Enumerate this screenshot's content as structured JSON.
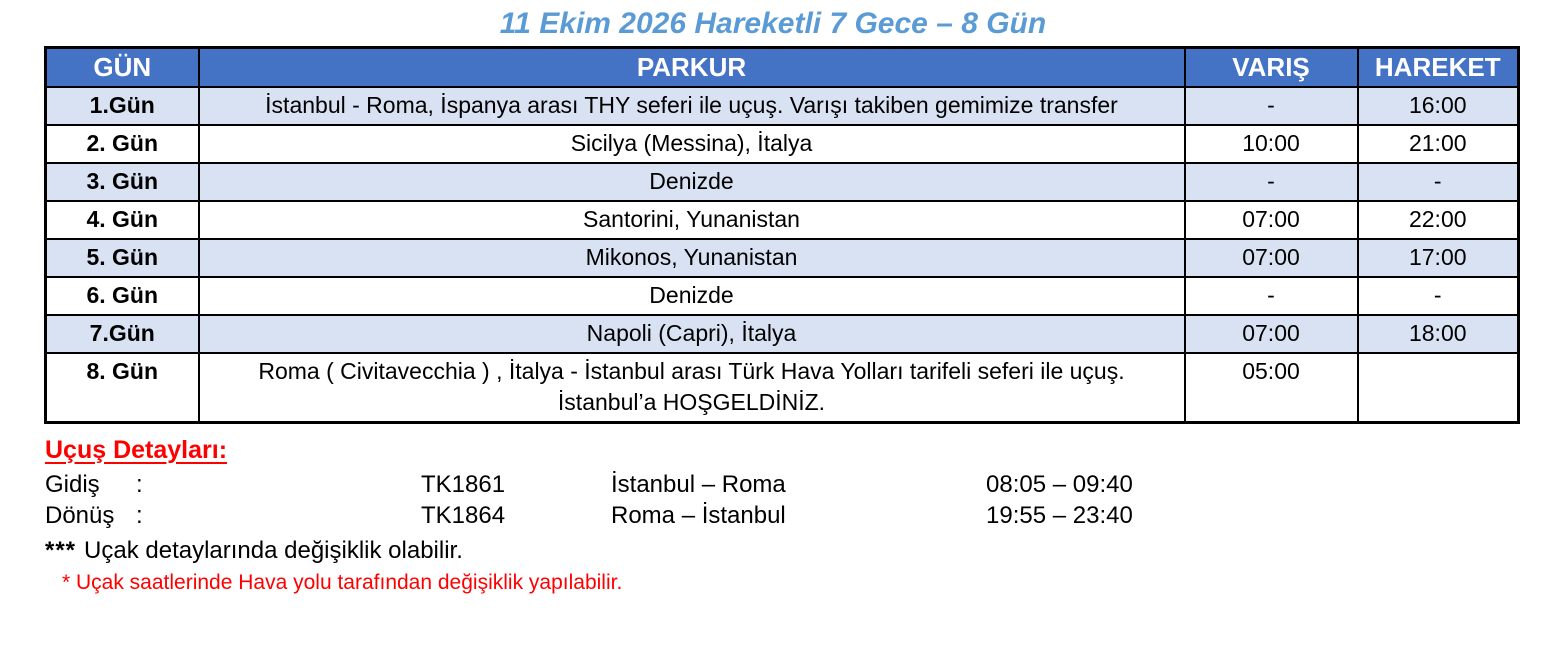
{
  "title": "11 Ekim 2026 Hareketli 7 Gece – 8 Gün",
  "table": {
    "headers": {
      "day": "GÜN",
      "route": "PARKUR",
      "arrival": "VARIŞ",
      "departure": "HAREKET"
    },
    "rows": [
      {
        "day": "1.Gün",
        "route": "İstanbul - Roma, İspanya arası THY seferi ile uçuş. Varışı takiben gemimize transfer",
        "arrival": "-",
        "departure": "16:00"
      },
      {
        "day": "2. Gün",
        "route": "Sicilya (Messina), İtalya",
        "arrival": "10:00",
        "departure": "21:00"
      },
      {
        "day": "3. Gün",
        "route": "Denizde",
        "arrival": "-",
        "departure": "-"
      },
      {
        "day": "4. Gün",
        "route": "Santorini, Yunanistan",
        "arrival": "07:00",
        "departure": "22:00"
      },
      {
        "day": "5. Gün",
        "route": "Mikonos, Yunanistan",
        "arrival": "07:00",
        "departure": "17:00"
      },
      {
        "day": "6. Gün",
        "route": "Denizde",
        "arrival": "-",
        "departure": "-"
      },
      {
        "day": "7.Gün",
        "route": "Napoli (Capri), İtalya",
        "arrival": "07:00",
        "departure": "18:00"
      },
      {
        "day": "8. Gün",
        "route": "Roma ( Civitavecchia ) , İtalya - İstanbul arası Türk Hava Yolları  tarifeli seferi ile uçuş. İstanbul’a HOŞGELDİNİZ.",
        "arrival": "05:00",
        "departure": ""
      }
    ]
  },
  "flight_details": {
    "heading": "Uçuş Detayları:",
    "rows": [
      {
        "label": "Gidiş",
        "colon": ":",
        "flight_no": "TK1861",
        "route": "İstanbul – Roma",
        "times": "08:05 – 09:40"
      },
      {
        "label": "Dönüş",
        "colon": ":",
        "flight_no": "TK1864",
        "route": "Roma – İstanbul",
        "times": "19:55 – 23:40"
      }
    ],
    "note_stars": "***",
    "note_text": "Uçak detaylarında değişiklik olabilir.",
    "red_note": "* Uçak saatlerinde Hava yolu tarafından değişiklik yapılabilir."
  },
  "colors": {
    "header_bg": "#4472C4",
    "stripe_bg": "#D9E2F3",
    "title_blue": "#5B9BD5",
    "note_red": "#FF0000",
    "border": "#000000"
  }
}
